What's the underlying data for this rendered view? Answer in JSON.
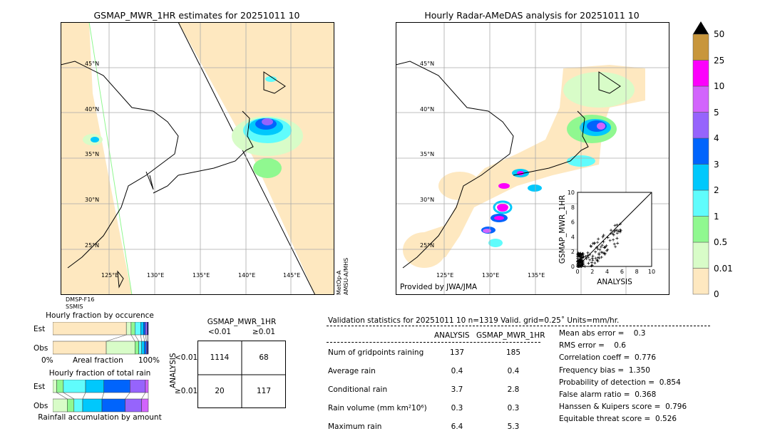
{
  "left_map": {
    "title": "GSMAP_MWR_1HR estimates for 20251011 10",
    "lat_labels": [
      "45°N",
      "40°N",
      "35°N",
      "30°N",
      "25°N"
    ],
    "lon_labels": [
      "125°E",
      "130°E",
      "135°E",
      "140°E",
      "145°E"
    ],
    "sensor_left": [
      "DMSP-F16",
      "SSMIS"
    ],
    "sensor_right": [
      "MetOp-A",
      "AMSU-A/MHS"
    ]
  },
  "right_map": {
    "title": "Hourly Radar-AMeDAS analysis for 20251011 10",
    "lat_labels": [
      "45°N",
      "40°N",
      "35°N",
      "30°N",
      "25°N"
    ],
    "lon_labels": [
      "125°E",
      "130°E",
      "135°E"
    ],
    "credit": "Provided by JWA/JMA"
  },
  "scatter": {
    "xlabel": "ANALYSIS",
    "ylabel": "GSMAP_MWR_1HR",
    "xlim": [
      0,
      10
    ],
    "ylim": [
      0,
      10
    ],
    "ticks": [
      "0",
      "2",
      "4",
      "6",
      "8",
      "10"
    ]
  },
  "colorbar": {
    "labels": [
      "50",
      "25",
      "10",
      "5",
      "4",
      "3",
      "2",
      "1",
      "0.5",
      "0.01",
      "0"
    ],
    "colors": [
      "#fee8c0",
      "#d8fcc8",
      "#90f890",
      "#60fcfc",
      "#00c8fc",
      "#0064fc",
      "#9664fc",
      "#d264fc",
      "#fc00fc",
      "#c8963c"
    ],
    "extend_color": "#000000"
  },
  "occurrence": {
    "title": "Hourly fraction by occurence",
    "row_labels": [
      "Est",
      "Obs"
    ],
    "axis_left": "0%",
    "axis_mid": "Areal fraction",
    "axis_right": "100%",
    "est": [
      77,
      5,
      4,
      6,
      3,
      2,
      2,
      1
    ],
    "obs": [
      56,
      30,
      4,
      3,
      3,
      2,
      1,
      1
    ]
  },
  "total_rain": {
    "title": "Hourly fraction of total rain",
    "row_labels": [
      "Est",
      "Obs"
    ],
    "footer": "Rainfall accumulation by amount",
    "est": [
      4,
      7,
      23,
      19,
      27,
      16,
      3
    ],
    "obs": [
      15,
      7,
      9,
      20,
      24,
      17,
      7
    ]
  },
  "contingency": {
    "header": "GSMAP_MWR_1HR",
    "col_labels": [
      "<0.01",
      "≥0.01"
    ],
    "row_axis": "ANALYSIS",
    "row_labels": [
      "<0.01",
      "≥0.01"
    ],
    "cells": [
      [
        "1114",
        "68"
      ],
      [
        "20",
        "117"
      ]
    ]
  },
  "validation": {
    "header": "Validation statistics for 20251011 10  n=1319 Valid. grid=0.25˚ Units=mm/hr.",
    "col_analysis": "ANALYSIS",
    "col_gsmap": "GSMAP_MWR_1HR",
    "rows": [
      {
        "label": "Num of gridpoints raining",
        "analysis": "137",
        "gsmap": "185"
      },
      {
        "label": "Average rain",
        "analysis": "0.4",
        "gsmap": "0.4"
      },
      {
        "label": "Conditional rain",
        "analysis": "3.7",
        "gsmap": "2.8"
      },
      {
        "label": "Rain volume (mm km²10⁶)",
        "analysis": "0.3",
        "gsmap": "0.3"
      },
      {
        "label": "Maximum rain",
        "analysis": "6.4",
        "gsmap": "5.3"
      }
    ],
    "scores": [
      "Mean abs error =    0.3",
      "RMS error =    0.6",
      "Correlation coeff =  0.776",
      "Frequency bias =  1.350",
      "Probability of detection =  0.854",
      "False alarm ratio =  0.368",
      "Hanssen & Kuipers score =  0.796",
      "Equitable threat score =  0.526"
    ]
  }
}
